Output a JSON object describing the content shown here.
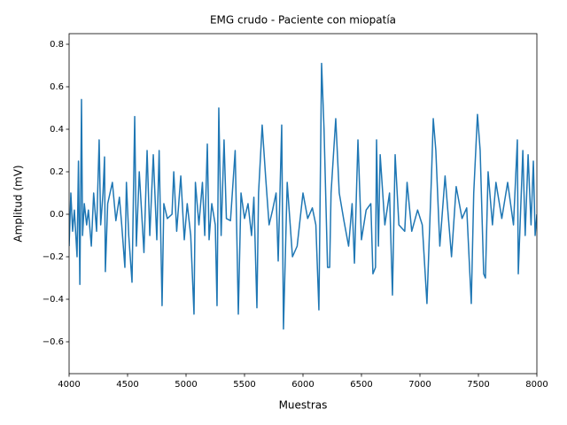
{
  "chart_data": {
    "type": "line",
    "title": "EMG crudo - Paciente con miopatía",
    "xlabel": "Muestras",
    "ylabel": "Amplitud (mV)",
    "color": "#1f77b4",
    "xlim": [
      4000,
      8000
    ],
    "ylim": [
      -0.75,
      0.85
    ],
    "xticks": [
      4000,
      4500,
      5000,
      5500,
      6000,
      6500,
      7000,
      7500,
      8000
    ],
    "yticks": [
      {
        "value": -0.6,
        "label": "−0.6"
      },
      {
        "value": -0.4,
        "label": "−0.4"
      },
      {
        "value": -0.2,
        "label": "−0.2"
      },
      {
        "value": 0,
        "label": "0.0"
      },
      0.2,
      0.4,
      0.6,
      0.8
    ],
    "x": [
      4000,
      4015,
      4030,
      4045,
      4068,
      4080,
      4092,
      4100,
      4106,
      4115,
      4130,
      4150,
      4165,
      4190,
      4210,
      4235,
      4257,
      4270,
      4290,
      4303,
      4310,
      4330,
      4370,
      4400,
      4430,
      4450,
      4477,
      4490,
      4510,
      4538,
      4561,
      4575,
      4600,
      4640,
      4667,
      4690,
      4720,
      4750,
      4770,
      4795,
      4810,
      4840,
      4880,
      4895,
      4920,
      4955,
      4985,
      5010,
      5040,
      5068,
      5080,
      5110,
      5140,
      5160,
      5182,
      5197,
      5220,
      5250,
      5265,
      5280,
      5300,
      5325,
      5345,
      5380,
      5420,
      5435,
      5447,
      5470,
      5500,
      5530,
      5560,
      5580,
      5606,
      5620,
      5651,
      5680,
      5710,
      5740,
      5770,
      5788,
      5818,
      5833,
      5865,
      5910,
      5950,
      6000,
      6040,
      6080,
      6110,
      6136,
      6159,
      6180,
      6210,
      6228,
      6240,
      6280,
      6310,
      6350,
      6390,
      6420,
      6440,
      6470,
      6500,
      6540,
      6580,
      6598,
      6620,
      6629,
      6645,
      6660,
      6700,
      6740,
      6765,
      6788,
      6820,
      6870,
      6890,
      6930,
      6980,
      7020,
      7060,
      7100,
      7114,
      7136,
      7170,
      7215,
      7270,
      7310,
      7360,
      7400,
      7439,
      7460,
      7492,
      7515,
      7545,
      7560,
      7583,
      7620,
      7650,
      7700,
      7750,
      7800,
      7833,
      7841,
      7880,
      7900,
      7925,
      7950,
      7970,
      7985,
      8000
    ],
    "values": [
      -0.15,
      0.1,
      -0.08,
      0.02,
      -0.2,
      0.25,
      -0.33,
      0.15,
      0.54,
      -0.1,
      0.05,
      -0.05,
      0.02,
      -0.15,
      0.1,
      -0.08,
      0.35,
      -0.05,
      0.1,
      0.27,
      -0.27,
      0.05,
      0.15,
      -0.03,
      0.08,
      -0.05,
      -0.25,
      0.15,
      -0.1,
      -0.32,
      0.46,
      -0.15,
      0.2,
      -0.18,
      0.3,
      -0.1,
      0.28,
      -0.12,
      0.3,
      -0.43,
      0.05,
      -0.02,
      0,
      0.2,
      -0.08,
      0.18,
      -0.12,
      0.05,
      -0.1,
      -0.47,
      0.15,
      -0.05,
      0.15,
      -0.1,
      0.33,
      -0.12,
      0.05,
      -0.05,
      -0.43,
      0.5,
      -0.1,
      0.35,
      -0.02,
      -0.03,
      0.3,
      -0.12,
      -0.47,
      0.1,
      -0.02,
      0.05,
      -0.1,
      0.08,
      -0.44,
      0.1,
      0.42,
      0.18,
      -0.05,
      0.02,
      0.1,
      -0.22,
      0.42,
      -0.54,
      0.15,
      -0.2,
      -0.15,
      0.1,
      -0.02,
      0.03,
      -0.05,
      -0.45,
      0.71,
      0.4,
      -0.25,
      -0.25,
      0.1,
      0.45,
      0.1,
      -0.03,
      -0.15,
      0.05,
      -0.23,
      0.35,
      -0.12,
      0.02,
      0.05,
      -0.28,
      -0.25,
      0.35,
      -0.15,
      0.28,
      -0.05,
      0.1,
      -0.38,
      0.28,
      -0.05,
      -0.08,
      0.15,
      -0.08,
      0.02,
      -0.05,
      -0.42,
      0.2,
      0.45,
      0.3,
      -0.15,
      0.18,
      -0.2,
      0.13,
      -0.02,
      0.03,
      -0.42,
      0.1,
      0.47,
      0.3,
      -0.28,
      -0.3,
      0.2,
      -0.05,
      0.15,
      -0.02,
      0.15,
      -0.05,
      0.35,
      -0.28,
      0.3,
      -0.1,
      0.28,
      -0.05,
      0.25,
      -0.1,
      0
    ]
  }
}
